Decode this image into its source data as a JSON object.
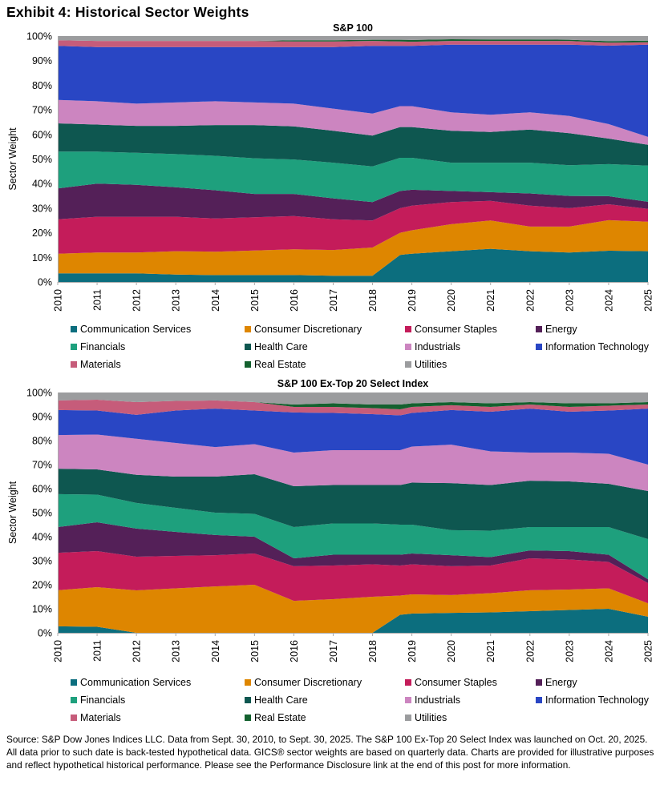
{
  "page": {
    "exhibit_title": "Exhibit 4: Historical Sector Weights",
    "source_note": "Source: S&P Dow Jones Indices LLC. Data from Sept. 30, 2010, to Sept. 30, 2025. The S&P 100 Ex-Top 20 Select Index was launched on Oct. 20, 2025. All data prior to such date is back-tested hypothetical data. GICS® sector weights are based on quarterly data. Charts are provided for illustrative purposes and reflect hypothetical historical performance. Please see the Performance Disclosure link at the end of this post for more information."
  },
  "colors": {
    "communication_services": "#0C6E7E",
    "consumer_discretionary": "#DE8600",
    "consumer_staples": "#C41C5A",
    "energy": "#542058",
    "financials": "#1EA07D",
    "health_care": "#0E5750",
    "industrials": "#CC85C0",
    "information_technology": "#2946C4",
    "materials": "#C65C7A",
    "real_estate": "#14612F",
    "utilities": "#9B9C9E",
    "axis_line": "#ABABAB"
  },
  "axes": {
    "y_label": "Sector Weight",
    "y_ticks": [
      "0%",
      "10%",
      "20%",
      "30%",
      "40%",
      "50%",
      "60%",
      "70%",
      "80%",
      "90%",
      "100%"
    ],
    "x_ticks": [
      2010,
      2011,
      2012,
      2013,
      2014,
      2015,
      2016,
      2017,
      2018,
      2019,
      2020,
      2021,
      2022,
      2023,
      2024,
      2025
    ]
  },
  "chart_data": [
    {
      "type": "area",
      "stacked": true,
      "normalized_to_100": true,
      "title": "S&P 100",
      "ylabel": "Sector Weight",
      "ylim": [
        0,
        100
      ],
      "legend_position": "bottom",
      "grid": false,
      "x": [
        2010,
        2011,
        2012,
        2013,
        2014,
        2015,
        2016,
        2017,
        2018,
        2018.7,
        2019,
        2020,
        2021,
        2022,
        2023,
        2024,
        2025
      ],
      "series": [
        {
          "name": "Communication Services",
          "color": "#0C6E7E",
          "values": [
            3.5,
            3.5,
            3.5,
            3.0,
            2.8,
            2.8,
            2.8,
            2.5,
            2.5,
            11.0,
            11.5,
            12.5,
            13.5,
            12.5,
            12.0,
            12.7,
            12.5
          ]
        },
        {
          "name": "Consumer Discretionary",
          "color": "#DE8600",
          "values": [
            8.0,
            8.5,
            8.5,
            9.5,
            9.5,
            10.0,
            10.5,
            10.5,
            11.5,
            9.0,
            9.5,
            11.0,
            11.5,
            10.0,
            10.5,
            12.4,
            12.0
          ]
        },
        {
          "name": "Consumer Staples",
          "color": "#C41C5A",
          "values": [
            14.0,
            14.5,
            14.5,
            14.0,
            13.5,
            13.5,
            13.5,
            12.5,
            11.0,
            10.0,
            10.0,
            9.0,
            8.0,
            8.5,
            7.5,
            6.5,
            5.2
          ]
        },
        {
          "name": "Energy",
          "color": "#542058",
          "values": [
            12.5,
            13.5,
            13.0,
            12.0,
            11.5,
            9.5,
            9.0,
            8.5,
            7.5,
            7.0,
            6.5,
            4.5,
            3.5,
            5.0,
            5.0,
            3.3,
            2.9
          ]
        },
        {
          "name": "Financials",
          "color": "#1EA07D",
          "values": [
            15.0,
            13.0,
            13.0,
            13.5,
            14.0,
            14.5,
            14.0,
            14.5,
            14.5,
            13.5,
            13.0,
            11.5,
            12.0,
            12.5,
            12.5,
            13.0,
            14.7
          ]
        },
        {
          "name": "Health Care",
          "color": "#0E5750",
          "values": [
            11.5,
            11.0,
            11.0,
            11.5,
            12.5,
            13.5,
            13.5,
            13.0,
            12.5,
            12.5,
            12.5,
            13.0,
            12.5,
            13.5,
            13.0,
            10.4,
            8.5
          ]
        },
        {
          "name": "Industrials",
          "color": "#CC85C0",
          "values": [
            9.5,
            9.5,
            9.0,
            9.5,
            9.7,
            9.2,
            9.2,
            9.0,
            9.0,
            8.5,
            8.5,
            7.5,
            7.0,
            7.0,
            7.0,
            5.9,
            3.2
          ]
        },
        {
          "name": "Information Technology",
          "color": "#2946C4",
          "values": [
            22.0,
            22.0,
            23.0,
            22.5,
            22.0,
            22.5,
            23.0,
            25.0,
            27.5,
            24.5,
            24.5,
            27.5,
            28.5,
            27.5,
            29.0,
            31.9,
            37.5
          ]
        },
        {
          "name": "Materials",
          "color": "#C65C7A",
          "values": [
            2.3,
            2.5,
            2.5,
            2.5,
            2.5,
            2.5,
            2.3,
            2.3,
            2.0,
            1.8,
            1.7,
            1.5,
            1.5,
            1.5,
            1.5,
            1.2,
            1.0
          ]
        },
        {
          "name": "Real Estate",
          "color": "#14612F",
          "values": [
            0,
            0,
            0,
            0,
            0,
            0,
            0.5,
            0.5,
            0.5,
            0.7,
            0.7,
            0.7,
            0.6,
            0.6,
            0.5,
            0.6,
            0.6
          ]
        },
        {
          "name": "Utilities",
          "color": "#9B9C9E",
          "values": [
            1.7,
            2.0,
            2.0,
            2.0,
            2.0,
            2.0,
            1.7,
            1.7,
            1.5,
            1.5,
            1.6,
            1.3,
            1.4,
            1.4,
            1.5,
            2.1,
            1.9
          ]
        }
      ]
    },
    {
      "type": "area",
      "stacked": true,
      "normalized_to_100": true,
      "title": "S&P 100 Ex-Top 20 Select Index",
      "ylabel": "Sector Weight",
      "ylim": [
        0,
        100
      ],
      "legend_position": "bottom",
      "grid": false,
      "x": [
        2010,
        2011,
        2012,
        2013,
        2014,
        2015,
        2016,
        2017,
        2018,
        2018.7,
        2019,
        2020,
        2021,
        2022,
        2023,
        2024,
        2025
      ],
      "series": [
        {
          "name": "Communication Services",
          "color": "#0C6E7E",
          "values": [
            2.7,
            2.5,
            0,
            0,
            0,
            0,
            0,
            0,
            0,
            7.5,
            8.0,
            8.3,
            8.5,
            9.0,
            9.5,
            10.0,
            6.7
          ]
        },
        {
          "name": "Consumer Discretionary",
          "color": "#DE8600",
          "values": [
            15.0,
            16.5,
            17.7,
            18.5,
            19.3,
            20.0,
            13.3,
            14.0,
            15.0,
            8.0,
            8.0,
            7.4,
            8.0,
            8.7,
            8.5,
            8.5,
            5.6
          ]
        },
        {
          "name": "Consumer Staples",
          "color": "#C41C5A",
          "values": [
            15.6,
            15.0,
            14.0,
            13.5,
            13.0,
            13.0,
            14.4,
            14.0,
            13.5,
            12.5,
            12.5,
            12.0,
            11.5,
            13.3,
            12.5,
            11.0,
            8.4
          ]
        },
        {
          "name": "Energy",
          "color": "#542058",
          "values": [
            10.7,
            12.0,
            11.7,
            10.0,
            8.4,
            7.0,
            3.3,
            4.5,
            4.0,
            4.5,
            4.5,
            4.6,
            3.5,
            3.3,
            3.5,
            3.0,
            1.6
          ]
        },
        {
          "name": "Financials",
          "color": "#1EA07D",
          "values": [
            13.7,
            11.5,
            10.7,
            10.0,
            9.3,
            9.5,
            13.0,
            13.0,
            13.0,
            12.5,
            12.0,
            10.4,
            11.0,
            9.7,
            10.0,
            11.5,
            16.7
          ]
        },
        {
          "name": "Health Care",
          "color": "#0E5750",
          "values": [
            10.6,
            10.5,
            11.7,
            13.0,
            15.0,
            16.5,
            17.0,
            16.0,
            16.0,
            16.5,
            17.5,
            19.6,
            19.0,
            19.3,
            19.0,
            18.0,
            20.0
          ]
        },
        {
          "name": "Industrials",
          "color": "#CC85C0",
          "values": [
            14.0,
            14.5,
            15.0,
            14.0,
            12.3,
            12.5,
            14.0,
            14.5,
            14.5,
            14.5,
            15.0,
            16.0,
            14.0,
            11.7,
            12.0,
            12.5,
            11.0
          ]
        },
        {
          "name": "Information Technology",
          "color": "#2946C4",
          "values": [
            10.4,
            10.0,
            10.0,
            13.5,
            16.0,
            14.0,
            16.7,
            15.5,
            15.0,
            14.5,
            14.0,
            14.4,
            16.5,
            18.3,
            17.0,
            18.0,
            23.3
          ]
        },
        {
          "name": "Materials",
          "color": "#C65C7A",
          "values": [
            4.0,
            4.5,
            5.3,
            4.0,
            3.4,
            3.5,
            2.3,
            2.5,
            2.5,
            2.5,
            2.5,
            2.0,
            2.0,
            1.7,
            2.0,
            2.0,
            1.7
          ]
        },
        {
          "name": "Real Estate",
          "color": "#14612F",
          "values": [
            0,
            0,
            0,
            0,
            0,
            0,
            1.0,
            1.5,
            1.5,
            2.0,
            1.5,
            1.3,
            1.5,
            1.0,
            1.5,
            1.0,
            1.0
          ]
        },
        {
          "name": "Utilities",
          "color": "#9B9C9E",
          "values": [
            3.3,
            3.0,
            4.0,
            3.5,
            3.3,
            4.0,
            5.0,
            4.5,
            5.0,
            5.0,
            4.5,
            4.0,
            4.5,
            4.0,
            4.5,
            4.5,
            4.0
          ]
        }
      ]
    }
  ]
}
